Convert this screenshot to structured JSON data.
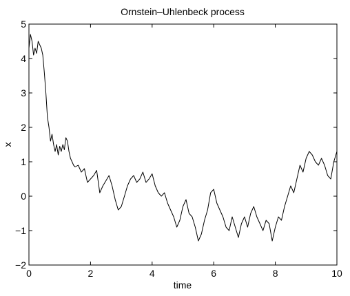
{
  "chart_data": {
    "type": "line",
    "title": "Ornstein–Uhlenbeck process",
    "xlabel": "time",
    "ylabel": "x",
    "xlim": [
      0,
      10
    ],
    "ylim": [
      -2,
      5
    ],
    "x_ticks": [
      "0",
      "2",
      "4",
      "6",
      "8",
      "10"
    ],
    "y_ticks": [
      "−2",
      "−1",
      "0",
      "1",
      "2",
      "3",
      "4",
      "5"
    ],
    "grid": false,
    "legend": "none",
    "line_color": "#000000",
    "series": [
      {
        "x": [
          0.0,
          0.05,
          0.1,
          0.15,
          0.2,
          0.25,
          0.3,
          0.35,
          0.4,
          0.45,
          0.5,
          0.55,
          0.6,
          0.65,
          0.7,
          0.75,
          0.8,
          0.85,
          0.9,
          0.95,
          1.0,
          1.05,
          1.1,
          1.15,
          1.2,
          1.25,
          1.3,
          1.35,
          1.4,
          1.45,
          1.5,
          1.6,
          1.7,
          1.8,
          1.9,
          2.0,
          2.1,
          2.2,
          2.3,
          2.4,
          2.5,
          2.6,
          2.7,
          2.8,
          2.9,
          3.0,
          3.1,
          3.2,
          3.3,
          3.4,
          3.5,
          3.6,
          3.7,
          3.8,
          3.9,
          4.0,
          4.1,
          4.2,
          4.3,
          4.4,
          4.5,
          4.6,
          4.7,
          4.8,
          4.9,
          5.0,
          5.1,
          5.2,
          5.3,
          5.4,
          5.5,
          5.6,
          5.7,
          5.8,
          5.9,
          6.0,
          6.1,
          6.2,
          6.3,
          6.4,
          6.5,
          6.6,
          6.7,
          6.8,
          6.9,
          7.0,
          7.1,
          7.2,
          7.3,
          7.4,
          7.5,
          7.6,
          7.7,
          7.8,
          7.9,
          8.0,
          8.1,
          8.2,
          8.3,
          8.4,
          8.5,
          8.6,
          8.7,
          8.8,
          8.9,
          9.0,
          9.1,
          9.2,
          9.3,
          9.4,
          9.5,
          9.6,
          9.7,
          9.8,
          9.9,
          10.0
        ],
        "y": [
          4.3,
          4.7,
          4.5,
          4.1,
          4.3,
          4.15,
          4.5,
          4.4,
          4.3,
          4.1,
          3.6,
          3.0,
          2.3,
          2.0,
          1.6,
          1.8,
          1.5,
          1.3,
          1.5,
          1.2,
          1.45,
          1.3,
          1.5,
          1.35,
          1.7,
          1.6,
          1.3,
          1.1,
          1.0,
          0.9,
          0.85,
          0.9,
          0.7,
          0.8,
          0.4,
          0.5,
          0.6,
          0.75,
          0.1,
          0.3,
          0.45,
          0.6,
          0.3,
          -0.1,
          -0.4,
          -0.3,
          0.0,
          0.3,
          0.5,
          0.6,
          0.4,
          0.5,
          0.7,
          0.4,
          0.5,
          0.65,
          0.3,
          0.1,
          0.0,
          0.1,
          -0.2,
          -0.4,
          -0.6,
          -0.9,
          -0.7,
          -0.3,
          -0.1,
          -0.5,
          -0.6,
          -0.9,
          -1.3,
          -1.1,
          -0.7,
          -0.4,
          0.1,
          0.2,
          -0.2,
          -0.4,
          -0.6,
          -0.9,
          -1.0,
          -0.6,
          -0.9,
          -1.2,
          -0.8,
          -0.6,
          -0.9,
          -0.5,
          -0.3,
          -0.6,
          -0.8,
          -1.0,
          -0.7,
          -0.8,
          -1.3,
          -0.9,
          -0.6,
          -0.7,
          -0.3,
          0.0,
          0.3,
          0.1,
          0.5,
          0.9,
          0.7,
          1.1,
          1.3,
          1.2,
          1.0,
          0.9,
          1.1,
          0.9,
          0.6,
          0.5,
          1.0,
          1.3
        ]
      }
    ]
  }
}
